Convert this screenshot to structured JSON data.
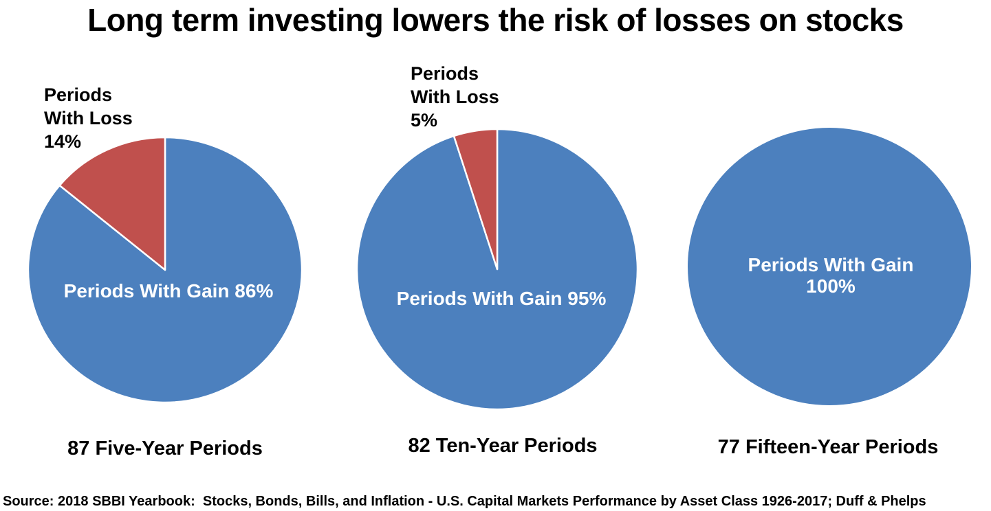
{
  "title": "Long term investing lowers the risk of losses on stocks",
  "source_line": "Source: 2018 SBBI Yearbook:  Stocks, Bonds, Bills, and Inflation - U.S. Capital Markets Performance by Asset Class 1926-2017; Duff & Phelps",
  "colors": {
    "gain_blue": "#4C80BE",
    "loss_red": "#C0504D",
    "label_on_pie": "#FFFFFF",
    "text": "#000000",
    "background": "#FFFFFF",
    "slice_separator": "#FFFFFF"
  },
  "chart_data": {
    "type": "pie",
    "title": "Long term investing lowers the risk of losses on stocks",
    "legend_position": "none",
    "start_angle_deg": 0,
    "direction": "clockwise",
    "charts": [
      {
        "caption": "87 Five-Year Periods",
        "categories": [
          "Periods With Gain",
          "Periods With Loss"
        ],
        "values": [
          86,
          14
        ],
        "gain_label": "Periods With Gain 86%",
        "loss_label_lines": [
          "Periods",
          "With Loss",
          "14%"
        ]
      },
      {
        "caption": "82 Ten-Year Periods",
        "categories": [
          "Periods With Gain",
          "Periods With Loss"
        ],
        "values": [
          95,
          5
        ],
        "gain_label": "Periods With Gain 95%",
        "loss_label_lines": [
          "Periods",
          "With Loss",
          "5%"
        ]
      },
      {
        "caption": "77 Fifteen-Year Periods",
        "categories": [
          "Periods With Gain",
          "Periods With Loss"
        ],
        "values": [
          100,
          0
        ],
        "gain_label_lines": [
          "Periods With Gain",
          "100%"
        ]
      }
    ]
  }
}
